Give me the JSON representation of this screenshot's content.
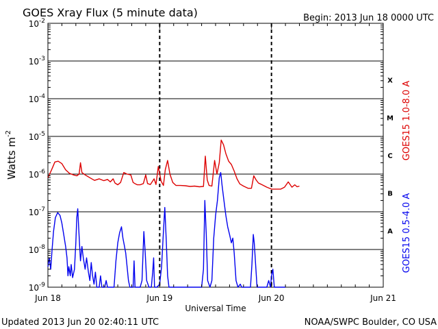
{
  "chart_data": {
    "type": "line",
    "title": "GOES Xray Flux (5 minute data)",
    "begin_label": "Begin:  2013 Jun 18 0000 UTC",
    "ylabel": "Watts m",
    "ylabel_sup": "-2",
    "xlabel": "Universal Time",
    "y_scale": "log",
    "ylim": [
      1e-09,
      0.01
    ],
    "xlim": [
      0,
      72
    ],
    "x_unit": "hours since 2013 Jun 18 00:00 UTC",
    "grid": true,
    "y_ticks": [
      {
        "value": 1e-09,
        "base": "10",
        "exp": "-9"
      },
      {
        "value": 1e-08,
        "base": "10",
        "exp": "-8"
      },
      {
        "value": 1e-07,
        "base": "10",
        "exp": "-7"
      },
      {
        "value": 1e-06,
        "base": "10",
        "exp": "-6"
      },
      {
        "value": 1e-05,
        "base": "10",
        "exp": "-5"
      },
      {
        "value": 0.0001,
        "base": "10",
        "exp": "-4"
      },
      {
        "value": 0.001,
        "base": "10",
        "exp": "-3"
      },
      {
        "value": 0.01,
        "base": "10",
        "exp": "-2"
      }
    ],
    "x_ticks": [
      {
        "value": 0,
        "label": "Jun 18"
      },
      {
        "value": 24,
        "label": "Jun 19"
      },
      {
        "value": 48,
        "label": "Jun 20"
      },
      {
        "value": 72,
        "label": "Jun 21"
      }
    ],
    "flare_classes": [
      {
        "label": "A",
        "value": 3.16e-08
      },
      {
        "label": "B",
        "value": 3.16e-07
      },
      {
        "label": "C",
        "value": 3.16e-06
      },
      {
        "label": "M",
        "value": 3.16e-05
      },
      {
        "label": "X",
        "value": 0.000316
      }
    ],
    "series": [
      {
        "name": "GOES15 1.0-8.0 A",
        "color": "#dd0000",
        "points": [
          [
            0.0,
            8e-07
          ],
          [
            0.8,
            1.3e-06
          ],
          [
            1.5,
            2.1e-06
          ],
          [
            2.2,
            2.2e-06
          ],
          [
            3.0,
            1.9e-06
          ],
          [
            3.8,
            1.3e-06
          ],
          [
            4.6,
            1.05e-06
          ],
          [
            5.5,
            9.5e-07
          ],
          [
            6.2,
            9e-07
          ],
          [
            6.7,
            1e-06
          ],
          [
            7.0,
            2e-06
          ],
          [
            7.3,
            1.1e-06
          ],
          [
            8.0,
            9.5e-07
          ],
          [
            9.0,
            8e-07
          ],
          [
            10.0,
            6.8e-07
          ],
          [
            11.0,
            7.5e-07
          ],
          [
            12.0,
            6.7e-07
          ],
          [
            12.8,
            7.2e-07
          ],
          [
            13.4,
            6.2e-07
          ],
          [
            14.0,
            7.5e-07
          ],
          [
            14.4,
            5.8e-07
          ],
          [
            15.0,
            5.2e-07
          ],
          [
            15.6,
            6e-07
          ],
          [
            16.3,
            1.1e-06
          ],
          [
            17.0,
            1e-06
          ],
          [
            17.8,
            9.5e-07
          ],
          [
            18.3,
            6e-07
          ],
          [
            18.8,
            5.5e-07
          ],
          [
            19.2,
            5.2e-07
          ],
          [
            19.8,
            5.2e-07
          ],
          [
            20.5,
            5.6e-07
          ],
          [
            21.0,
            9.5e-07
          ],
          [
            21.4,
            5.6e-07
          ],
          [
            22.0,
            5.3e-07
          ],
          [
            22.8,
            7.5e-07
          ],
          [
            23.2,
            5.3e-07
          ],
          [
            23.7,
            1.6e-06
          ],
          [
            24.3,
            6.5e-07
          ],
          [
            24.8,
            5e-07
          ],
          [
            25.2,
            1.3e-06
          ],
          [
            25.7,
            2.3e-06
          ],
          [
            26.2,
            1e-06
          ],
          [
            26.8,
            6e-07
          ],
          [
            27.5,
            5e-07
          ],
          [
            28.5,
            5e-07
          ],
          [
            29.5,
            4.9e-07
          ],
          [
            30.5,
            4.7e-07
          ],
          [
            31.5,
            4.8e-07
          ],
          [
            32.5,
            4.6e-07
          ],
          [
            33.4,
            4.7e-07
          ],
          [
            33.8,
            3e-06
          ],
          [
            34.2,
            7e-07
          ],
          [
            34.6,
            5e-07
          ],
          [
            35.2,
            4.8e-07
          ],
          [
            35.8,
            2.3e-06
          ],
          [
            36.3,
            1e-06
          ],
          [
            36.8,
            2e-06
          ],
          [
            37.2,
            8e-06
          ],
          [
            37.7,
            6e-06
          ],
          [
            38.2,
            3.5e-06
          ],
          [
            38.8,
            2.2e-06
          ],
          [
            39.4,
            1.8e-06
          ],
          [
            40.0,
            1.2e-06
          ],
          [
            40.6,
            7.5e-07
          ],
          [
            41.2,
            5.5e-07
          ],
          [
            42.0,
            4.8e-07
          ],
          [
            43.0,
            4.2e-07
          ],
          [
            43.7,
            4.2e-07
          ],
          [
            44.2,
            9e-07
          ],
          [
            44.7,
            7e-07
          ],
          [
            45.2,
            5.8e-07
          ],
          [
            46.0,
            5.2e-07
          ],
          [
            47.0,
            4.5e-07
          ],
          [
            48.0,
            4e-07
          ],
          [
            49.0,
            4e-07
          ],
          [
            50.0,
            4e-07
          ],
          [
            50.8,
            4.5e-07
          ],
          [
            51.6,
            6.2e-07
          ],
          [
            52.4,
            4.5e-07
          ],
          [
            53.0,
            5.2e-07
          ],
          [
            53.5,
            4.6e-07
          ],
          [
            54.0,
            4.8e-07
          ]
        ]
      },
      {
        "name": "GOES15 0.5-4.0 A",
        "color": "#0000ee",
        "points": [
          [
            0.0,
            3.5e-09
          ],
          [
            0.3,
            6e-09
          ],
          [
            0.6,
            3e-09
          ],
          [
            0.9,
            1e-08
          ],
          [
            1.2,
            3e-08
          ],
          [
            1.6,
            7e-08
          ],
          [
            2.1,
            9.5e-08
          ],
          [
            2.6,
            8e-08
          ],
          [
            3.0,
            5e-08
          ],
          [
            3.4,
            2.5e-08
          ],
          [
            3.8,
            1.2e-08
          ],
          [
            4.1,
            6e-09
          ],
          [
            4.3,
            2e-09
          ],
          [
            4.5,
            3.5e-09
          ],
          [
            4.8,
            2e-09
          ],
          [
            5.0,
            4e-09
          ],
          [
            5.3,
            1.8e-09
          ],
          [
            5.7,
            3e-09
          ],
          [
            6.0,
            1.5e-08
          ],
          [
            6.2,
            7e-08
          ],
          [
            6.4,
            1.2e-07
          ],
          [
            6.6,
            4e-08
          ],
          [
            6.8,
            1.3e-08
          ],
          [
            7.0,
            5e-09
          ],
          [
            7.3,
            1.2e-08
          ],
          [
            7.6,
            6e-09
          ],
          [
            8.0,
            3e-09
          ],
          [
            8.3,
            6e-09
          ],
          [
            8.7,
            2.5e-09
          ],
          [
            9.0,
            1.5e-09
          ],
          [
            9.3,
            4.5e-09
          ],
          [
            9.6,
            2e-09
          ],
          [
            9.9,
            1.2e-09
          ],
          [
            10.2,
            2.5e-09
          ],
          [
            10.5,
            1e-09
          ],
          [
            11.0,
            1e-09
          ],
          [
            11.3,
            2e-09
          ],
          [
            11.6,
            1e-09
          ],
          [
            12.2,
            1e-09
          ],
          [
            12.5,
            1.5e-09
          ],
          [
            12.8,
            1e-09
          ],
          [
            13.5,
            1e-09
          ],
          [
            14.2,
            1e-09
          ],
          [
            14.6,
            5e-09
          ],
          [
            15.0,
            1.5e-08
          ],
          [
            15.4,
            2.8e-08
          ],
          [
            15.8,
            4e-08
          ],
          [
            16.1,
            2e-08
          ],
          [
            16.4,
            1.3e-08
          ],
          [
            16.7,
            8e-09
          ],
          [
            17.0,
            3.5e-09
          ],
          [
            17.3,
            1.5e-09
          ],
          [
            17.6,
            1e-09
          ],
          [
            18.3,
            1e-09
          ],
          [
            18.5,
            5e-09
          ],
          [
            18.7,
            1e-09
          ],
          [
            19.2,
            1e-09
          ],
          [
            19.8,
            1e-09
          ],
          [
            20.2,
            1.5e-09
          ],
          [
            20.6,
            3e-08
          ],
          [
            20.9,
            8e-09
          ],
          [
            21.2,
            1.5e-09
          ],
          [
            21.7,
            1e-09
          ],
          [
            22.2,
            1e-09
          ],
          [
            22.5,
            2.5e-09
          ],
          [
            22.7,
            6e-09
          ],
          [
            22.9,
            1e-09
          ],
          [
            23.4,
            1e-09
          ],
          [
            24.0,
            1.2e-09
          ],
          [
            24.4,
            3.5e-09
          ],
          [
            24.8,
            3e-08
          ],
          [
            25.1,
            1.3e-07
          ],
          [
            25.4,
            1.8e-08
          ],
          [
            25.7,
            2e-09
          ],
          [
            26.0,
            1e-09
          ],
          [
            27.0,
            1e-09
          ],
          [
            28.0,
            1e-09
          ],
          [
            29.0,
            1e-09
          ],
          [
            30.0,
            1e-09
          ],
          [
            31.0,
            1e-09
          ],
          [
            32.0,
            1e-09
          ],
          [
            33.0,
            1e-09
          ],
          [
            33.4,
            3e-09
          ],
          [
            33.7,
            2e-07
          ],
          [
            34.0,
            2.5e-08
          ],
          [
            34.3,
            1.5e-09
          ],
          [
            34.8,
            1e-09
          ],
          [
            35.2,
            1.5e-09
          ],
          [
            35.6,
            2e-08
          ],
          [
            36.0,
            8e-08
          ],
          [
            36.4,
            2e-07
          ],
          [
            36.8,
            8e-07
          ],
          [
            37.1,
            1.1e-06
          ],
          [
            37.4,
            5e-07
          ],
          [
            37.8,
            2e-07
          ],
          [
            38.2,
            8e-08
          ],
          [
            38.6,
            4e-08
          ],
          [
            39.0,
            2.5e-08
          ],
          [
            39.4,
            1.5e-08
          ],
          [
            39.7,
            2e-08
          ],
          [
            40.0,
            8e-09
          ],
          [
            40.4,
            1.5e-09
          ],
          [
            40.8,
            1e-09
          ],
          [
            41.3,
            1.2e-09
          ],
          [
            41.6,
            1e-09
          ],
          [
            42.5,
            1e-09
          ],
          [
            43.5,
            1e-09
          ],
          [
            43.8,
            4e-09
          ],
          [
            44.1,
            2.5e-08
          ],
          [
            44.3,
            1.5e-08
          ],
          [
            44.6,
            4e-09
          ],
          [
            44.9,
            1e-09
          ],
          [
            45.5,
            1e-09
          ],
          [
            46.5,
            1e-09
          ],
          [
            47.0,
            1e-09
          ],
          [
            47.4,
            1.5e-09
          ],
          [
            47.8,
            1e-09
          ],
          [
            48.0,
            2e-09
          ],
          [
            48.3,
            3e-09
          ],
          [
            48.6,
            1e-09
          ],
          [
            49.0,
            1e-09
          ],
          [
            50.0,
            1e-09
          ],
          [
            51.0,
            1e-09
          ]
        ]
      }
    ]
  },
  "footer": {
    "updated": "Updated 2013 Jun 20 02:40:11 UTC",
    "credit": "NOAA/SWPC Boulder, CO USA"
  }
}
